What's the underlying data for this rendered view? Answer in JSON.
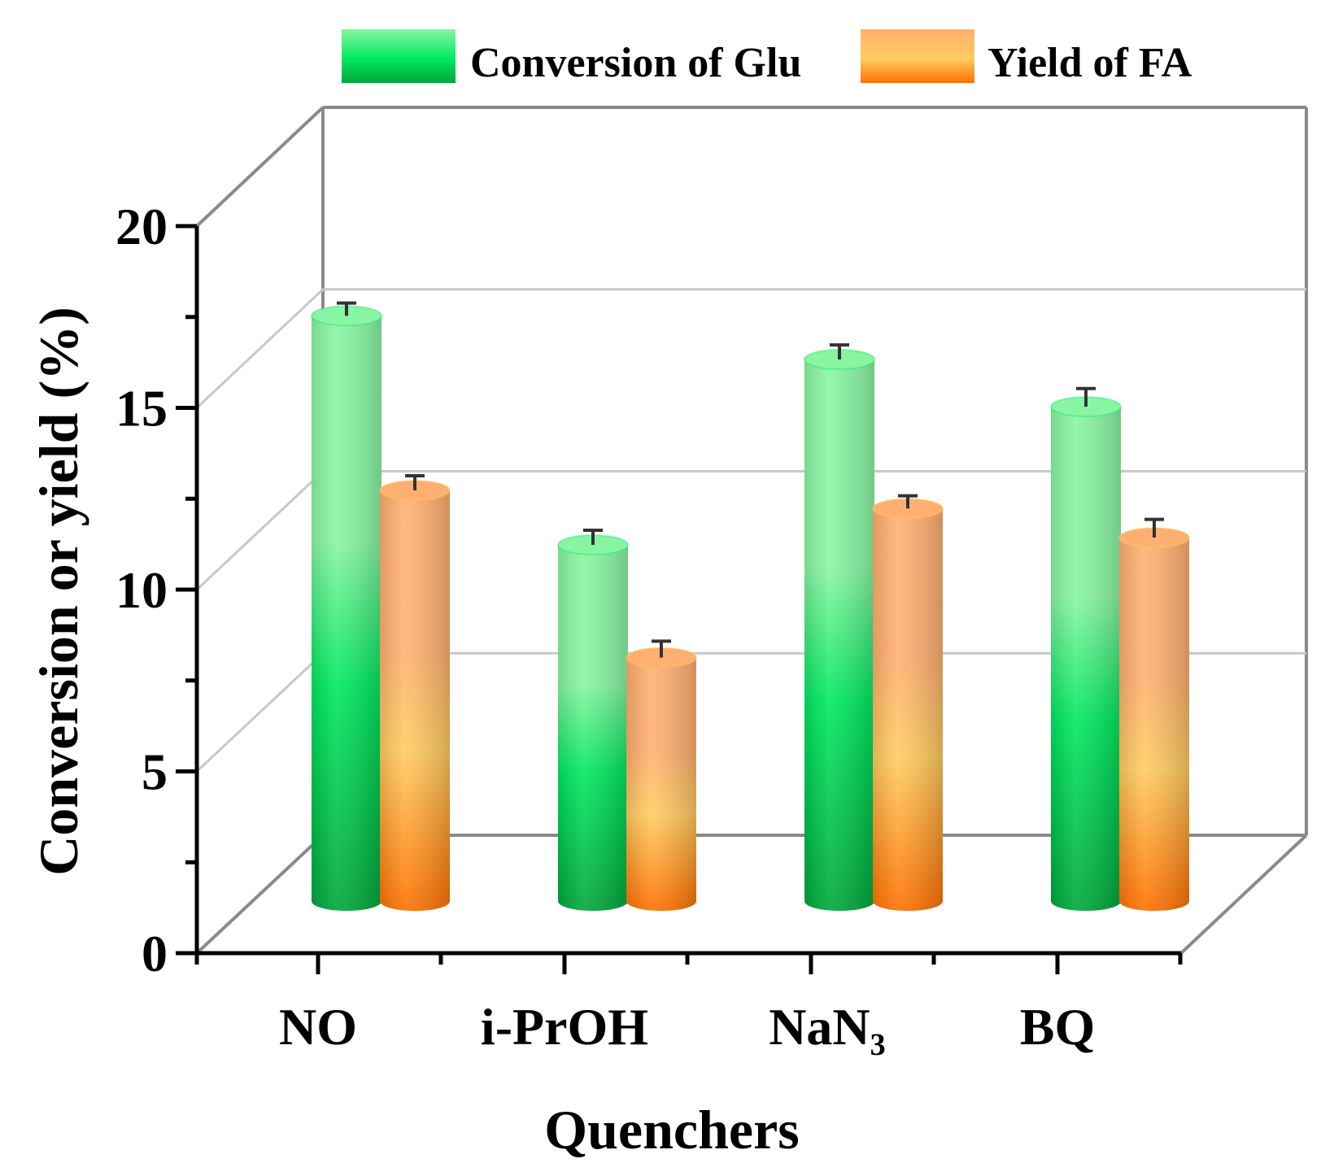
{
  "chart_data": {
    "type": "bar",
    "style": "3d-cylinder",
    "title": "",
    "xlabel": "Quenchers",
    "ylabel": "Conversion or yield (%)",
    "ylim": [
      0,
      20
    ],
    "yticks": [
      "0",
      "5",
      "10",
      "15",
      "20"
    ],
    "categories": [
      "NO",
      "i-PrOH",
      "NaN₃",
      "BQ"
    ],
    "series": [
      {
        "name": "Conversion of Glu",
        "values": [
          16.1,
          9.8,
          14.9,
          13.6
        ],
        "errors": [
          0.35,
          0.4,
          0.4,
          0.5
        ],
        "color_top": "#88f5a2",
        "color_mid": "#00e860",
        "color_bottom": "#00a63a"
      },
      {
        "name": "Yield of FA",
        "values": [
          11.3,
          6.7,
          10.8,
          10.0
        ],
        "errors": [
          0.4,
          0.45,
          0.35,
          0.5
        ],
        "color_top": "#ffb070",
        "color_mid": "#ffcc60",
        "color_bottom": "#ff7000"
      }
    ],
    "legend_position": "top",
    "grid": true,
    "colors": {
      "wall_line": "#8a8a8a",
      "grid_line": "#c8c8c8",
      "axis": "#000000"
    }
  }
}
